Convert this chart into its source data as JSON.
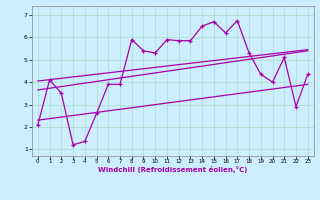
{
  "xlabel": "Windchill (Refroidissement éolien,°C)",
  "bg_color": "#cceeff",
  "grid_color": "#aaddcc",
  "line_color": "#aa00aa",
  "xlim": [
    -0.5,
    23.5
  ],
  "ylim": [
    0.7,
    7.4
  ],
  "yticks": [
    1,
    2,
    3,
    4,
    5,
    6,
    7
  ],
  "xticks": [
    0,
    1,
    2,
    3,
    4,
    5,
    6,
    7,
    8,
    9,
    10,
    11,
    12,
    13,
    14,
    15,
    16,
    17,
    18,
    19,
    20,
    21,
    22,
    23
  ],
  "line1_x": [
    0,
    1,
    2,
    3,
    4,
    5,
    6,
    7,
    8,
    9,
    10,
    11,
    12,
    13,
    14,
    15,
    16,
    17,
    18,
    19,
    20,
    21,
    22,
    23
  ],
  "line1_y": [
    2.1,
    4.1,
    3.5,
    1.2,
    1.35,
    2.6,
    3.9,
    3.9,
    5.9,
    5.4,
    5.3,
    5.9,
    5.85,
    5.85,
    6.5,
    6.7,
    6.2,
    6.75,
    5.3,
    4.35,
    4.0,
    5.1,
    2.9,
    4.35
  ],
  "line2_x": [
    0,
    23
  ],
  "line2_y": [
    3.65,
    5.4
  ],
  "line3_x": [
    0,
    23
  ],
  "line3_y": [
    4.05,
    5.45
  ],
  "line4_x": [
    0,
    23
  ],
  "line4_y": [
    2.3,
    3.9
  ]
}
